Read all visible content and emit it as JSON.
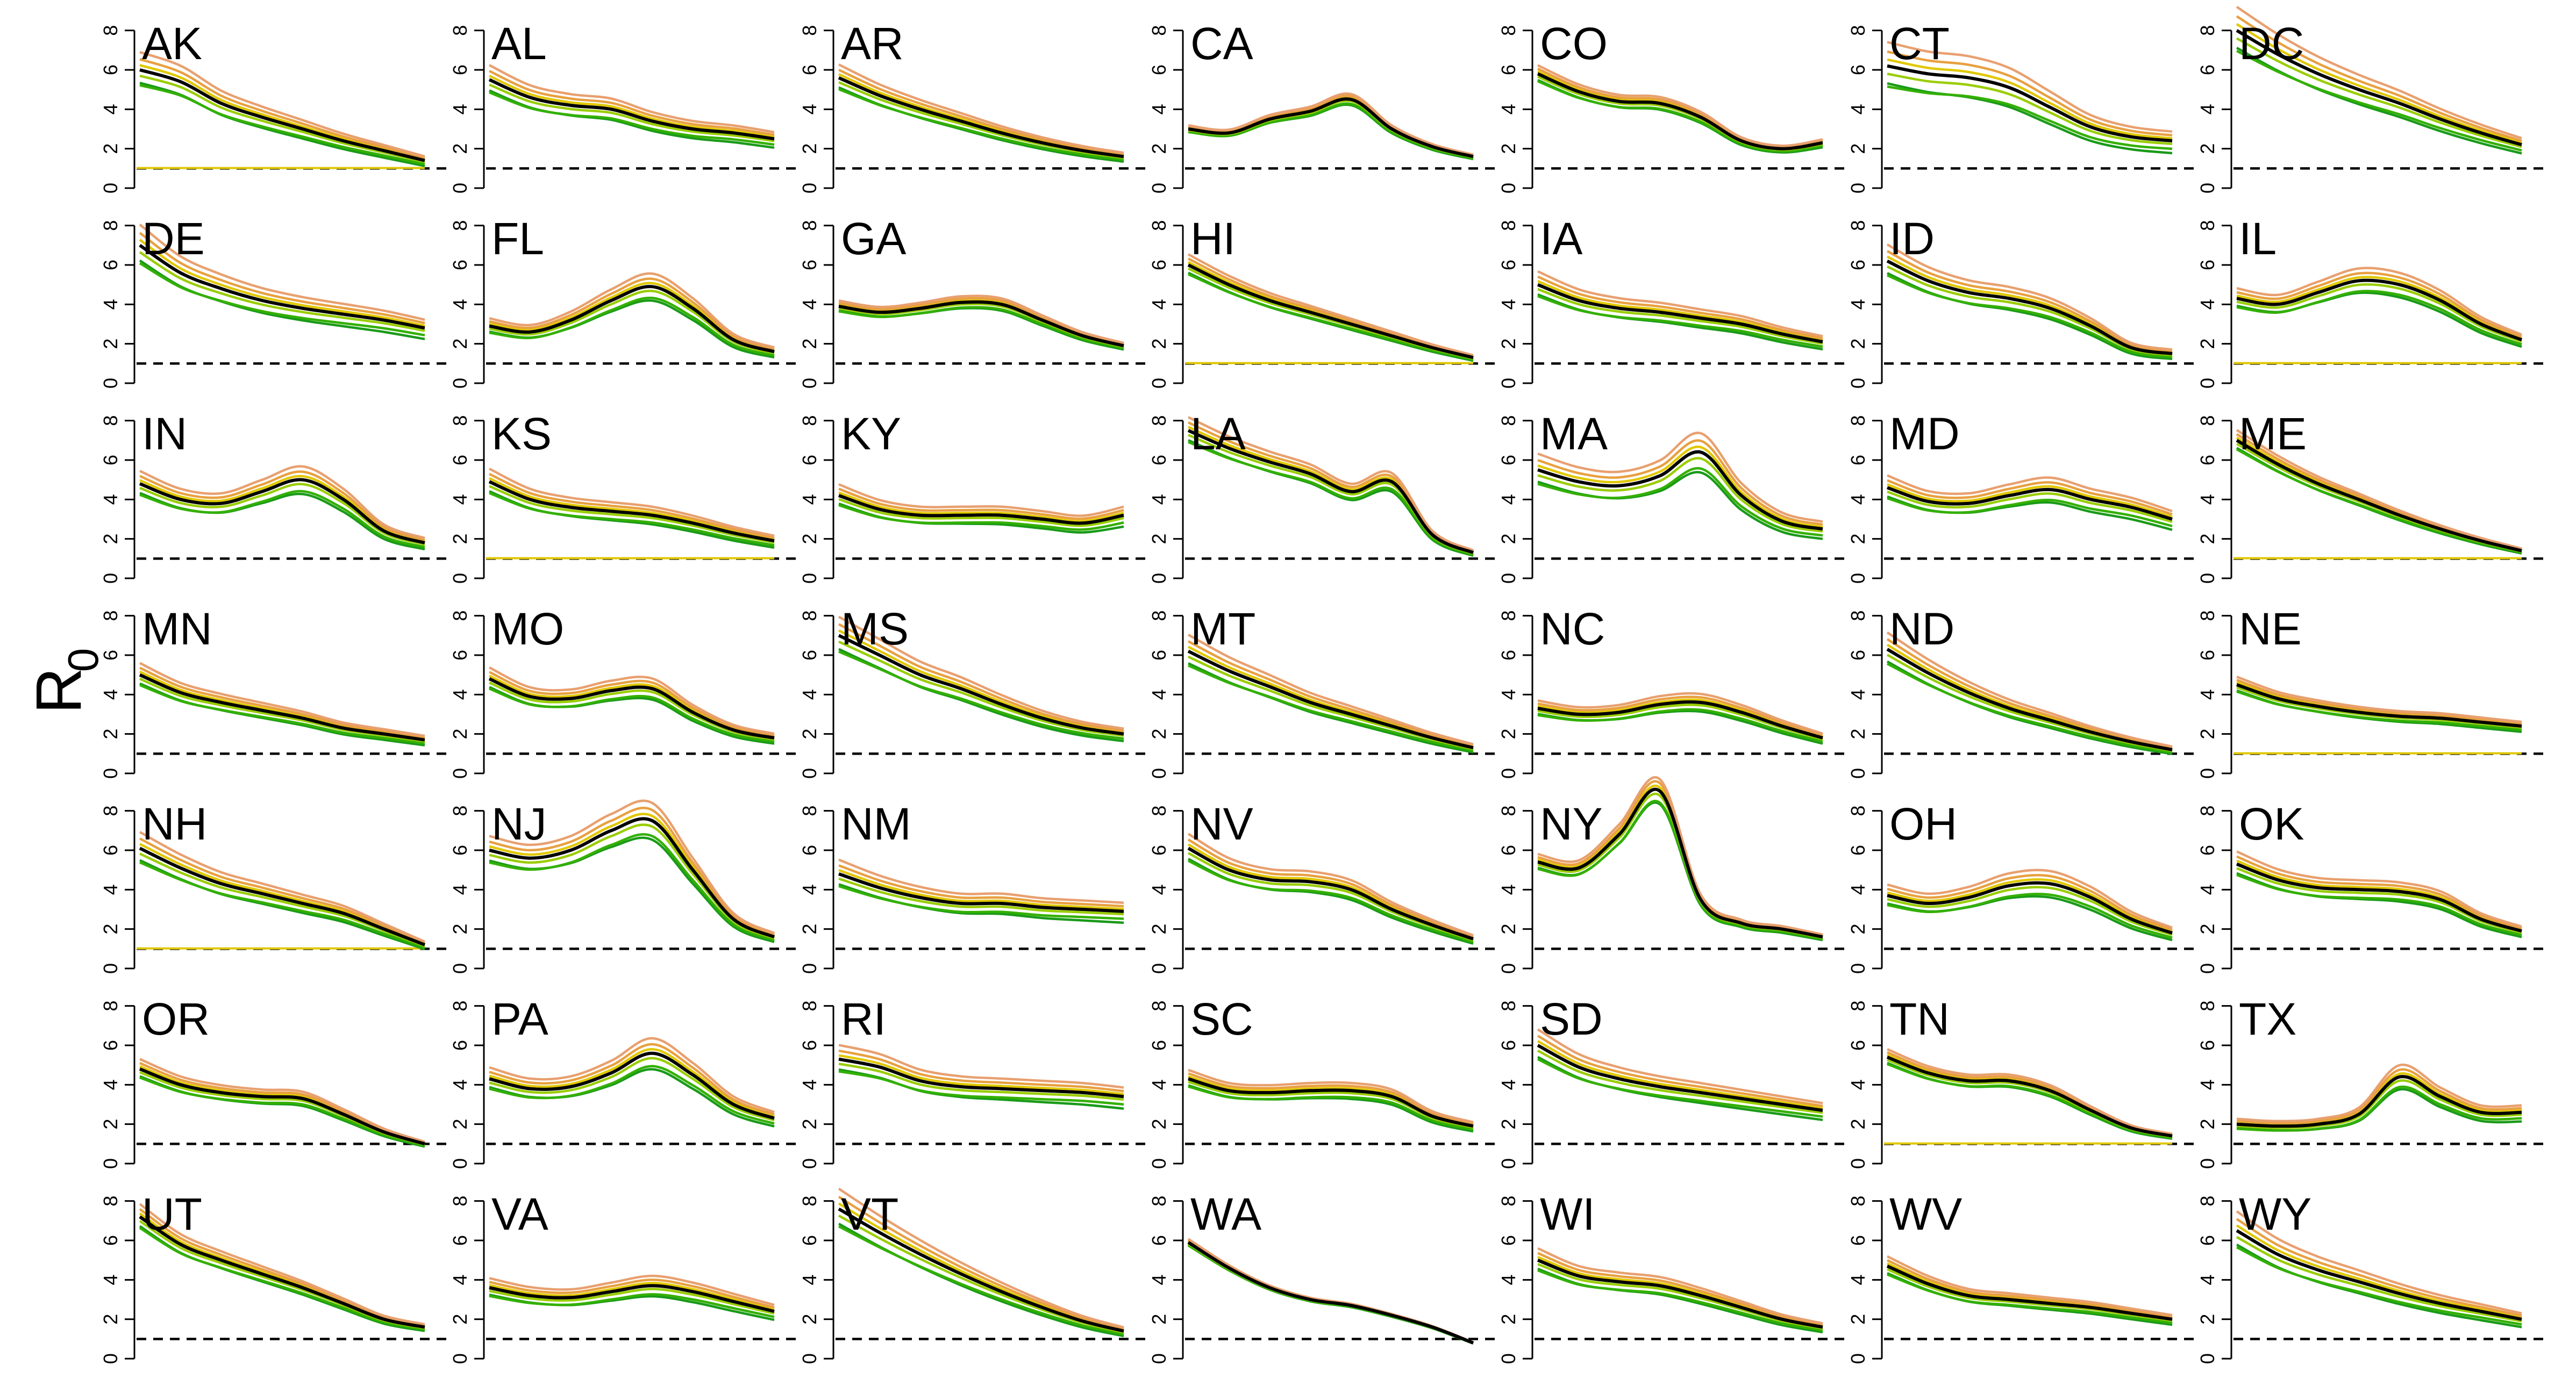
{
  "figure": {
    "ylabel_main": "R",
    "ylabel_sub": "0"
  },
  "colors": {
    "black": "#000000",
    "green_dark": "#1a9a1a",
    "green": "#33b000",
    "yellow_green": "#9acd00",
    "yellow": "#e0c800",
    "orange": "#e8a040",
    "salmon": "#e8a070",
    "reference": "#000000"
  },
  "chart_data": {
    "type": "line",
    "grid": false,
    "reference_line": 1,
    "ylim": [
      0,
      9
    ],
    "yticks": [
      "0",
      "2",
      "4",
      "6",
      "8"
    ],
    "series_colors": [
      "#1a9a1a",
      "#33b000",
      "#9acd00",
      "#e0c800",
      "#e8a040",
      "#e8a070"
    ],
    "panels": [
      {
        "state": "AK",
        "curve": [
          6.0,
          5.4,
          4.3,
          3.6,
          3.0,
          2.4,
          1.9,
          1.4
        ],
        "spread": 1.0,
        "flat_low": true
      },
      {
        "state": "AL",
        "curve": [
          5.5,
          4.6,
          4.2,
          4.0,
          3.4,
          3.0,
          2.8,
          2.5
        ],
        "spread": 0.9
      },
      {
        "state": "AR",
        "curve": [
          5.6,
          4.7,
          4.0,
          3.4,
          2.8,
          2.3,
          1.9,
          1.6
        ],
        "spread": 0.8
      },
      {
        "state": "CA",
        "curve": [
          3.0,
          2.8,
          3.5,
          3.9,
          4.5,
          3.0,
          2.1,
          1.6
        ],
        "spread": 0.4
      },
      {
        "state": "CO",
        "curve": [
          5.8,
          4.9,
          4.4,
          4.3,
          3.6,
          2.4,
          2.0,
          2.3
        ],
        "spread": 0.5
      },
      {
        "state": "CT",
        "curve": [
          6.2,
          5.8,
          5.6,
          5.1,
          4.1,
          3.1,
          2.6,
          2.4
        ],
        "spread": 1.3
      },
      {
        "state": "DC",
        "curve": [
          8.0,
          6.8,
          5.8,
          5.0,
          4.3,
          3.5,
          2.8,
          2.2
        ],
        "spread": 1.0
      },
      {
        "state": "DE",
        "curve": [
          7.0,
          5.6,
          4.8,
          4.2,
          3.8,
          3.5,
          3.2,
          2.8
        ],
        "spread": 1.0
      },
      {
        "state": "FL",
        "curve": [
          2.9,
          2.6,
          3.2,
          4.2,
          4.9,
          3.8,
          2.2,
          1.6
        ],
        "spread": 0.9
      },
      {
        "state": "GA",
        "curve": [
          3.9,
          3.6,
          3.8,
          4.1,
          4.0,
          3.2,
          2.4,
          1.9
        ],
        "spread": 0.5
      },
      {
        "state": "HI",
        "curve": [
          6.0,
          5.0,
          4.2,
          3.6,
          3.0,
          2.4,
          1.8,
          1.3
        ],
        "spread": 0.6,
        "flat_low": true
      },
      {
        "state": "IA",
        "curve": [
          5.0,
          4.2,
          3.8,
          3.6,
          3.3,
          3.0,
          2.5,
          2.1
        ],
        "spread": 0.9
      },
      {
        "state": "ID",
        "curve": [
          6.2,
          5.2,
          4.6,
          4.3,
          3.8,
          2.9,
          1.8,
          1.5
        ],
        "spread": 0.9
      },
      {
        "state": "IL",
        "curve": [
          4.3,
          4.0,
          4.6,
          5.2,
          5.0,
          4.2,
          3.0,
          2.2
        ],
        "spread": 0.8,
        "flat_low": true
      },
      {
        "state": "IN",
        "curve": [
          4.8,
          4.0,
          3.8,
          4.4,
          5.0,
          4.0,
          2.4,
          1.8
        ],
        "spread": 0.9
      },
      {
        "state": "KS",
        "curve": [
          4.9,
          4.0,
          3.6,
          3.4,
          3.2,
          2.8,
          2.3,
          1.9
        ],
        "spread": 0.9,
        "flat_low": true
      },
      {
        "state": "KY",
        "curve": [
          4.2,
          3.5,
          3.2,
          3.2,
          3.2,
          3.0,
          2.8,
          3.2
        ],
        "spread": 0.9
      },
      {
        "state": "LA",
        "curve": [
          7.5,
          6.6,
          5.9,
          5.3,
          4.4,
          4.9,
          2.2,
          1.3
        ],
        "spread": 0.6
      },
      {
        "state": "MA",
        "curve": [
          5.5,
          4.9,
          4.7,
          5.2,
          6.4,
          4.2,
          2.9,
          2.5
        ],
        "spread": 1.0
      },
      {
        "state": "MD",
        "curve": [
          4.6,
          3.9,
          3.8,
          4.2,
          4.5,
          4.0,
          3.6,
          3.0
        ],
        "spread": 0.9
      },
      {
        "state": "ME",
        "curve": [
          7.0,
          5.8,
          4.8,
          4.0,
          3.2,
          2.5,
          1.9,
          1.4
        ],
        "spread": 0.5,
        "flat_low": true
      },
      {
        "state": "MN",
        "curve": [
          5.0,
          4.1,
          3.6,
          3.2,
          2.8,
          2.3,
          2.0,
          1.7
        ],
        "spread": 0.8
      },
      {
        "state": "MO",
        "curve": [
          4.8,
          3.9,
          3.8,
          4.2,
          4.3,
          3.1,
          2.2,
          1.8
        ],
        "spread": 0.8
      },
      {
        "state": "MS",
        "curve": [
          7.0,
          6.0,
          5.0,
          4.3,
          3.5,
          2.8,
          2.3,
          2.0
        ],
        "spread": 0.9
      },
      {
        "state": "MT",
        "curve": [
          6.2,
          5.2,
          4.4,
          3.6,
          3.0,
          2.4,
          1.8,
          1.3
        ],
        "spread": 0.9
      },
      {
        "state": "NC",
        "curve": [
          3.3,
          3.0,
          3.1,
          3.5,
          3.6,
          3.1,
          2.4,
          1.8
        ],
        "spread": 0.8
      },
      {
        "state": "ND",
        "curve": [
          6.3,
          5.1,
          4.1,
          3.3,
          2.7,
          2.1,
          1.6,
          1.2
        ],
        "spread": 0.9
      },
      {
        "state": "NE",
        "curve": [
          4.5,
          3.8,
          3.4,
          3.1,
          2.9,
          2.8,
          2.6,
          2.4
        ],
        "spread": 0.6,
        "flat_low": true
      },
      {
        "state": "NH",
        "curve": [
          6.1,
          5.1,
          4.3,
          3.8,
          3.3,
          2.8,
          2.0,
          1.2
        ],
        "spread": 0.9,
        "flat_low": true
      },
      {
        "state": "NJ",
        "curve": [
          6.0,
          5.6,
          6.0,
          7.0,
          7.5,
          5.0,
          2.5,
          1.6
        ],
        "spread": 0.8
      },
      {
        "state": "NM",
        "curve": [
          4.8,
          4.1,
          3.6,
          3.3,
          3.3,
          3.1,
          3.0,
          2.9
        ],
        "spread": 1.0
      },
      {
        "state": "NV",
        "curve": [
          6.1,
          5.0,
          4.5,
          4.4,
          4.0,
          3.0,
          2.2,
          1.5
        ],
        "spread": 0.8
      },
      {
        "state": "NY",
        "curve": [
          5.4,
          5.1,
          6.8,
          9.0,
          3.5,
          2.3,
          2.0,
          1.6
        ],
        "spread": 0.5
      },
      {
        "state": "OH",
        "curve": [
          3.7,
          3.3,
          3.6,
          4.2,
          4.3,
          3.6,
          2.5,
          1.8
        ],
        "spread": 1.0
      },
      {
        "state": "OK",
        "curve": [
          5.3,
          4.5,
          4.1,
          4.0,
          3.9,
          3.5,
          2.5,
          1.9
        ],
        "spread": 0.8
      },
      {
        "state": "OR",
        "curve": [
          4.8,
          4.0,
          3.6,
          3.4,
          3.3,
          2.5,
          1.6,
          1.0
        ],
        "spread": 0.7
      },
      {
        "state": "PA",
        "curve": [
          4.3,
          3.8,
          3.9,
          4.6,
          5.6,
          4.5,
          3.0,
          2.3
        ],
        "spread": 0.9
      },
      {
        "state": "RI",
        "curve": [
          5.3,
          4.9,
          4.2,
          3.9,
          3.8,
          3.7,
          3.6,
          3.4
        ],
        "spread": 0.9
      },
      {
        "state": "SC",
        "curve": [
          4.3,
          3.7,
          3.6,
          3.7,
          3.7,
          3.4,
          2.4,
          1.9
        ],
        "spread": 0.7
      },
      {
        "state": "SD",
        "curve": [
          6.0,
          4.9,
          4.3,
          3.9,
          3.6,
          3.3,
          3.0,
          2.7
        ],
        "spread": 0.9
      },
      {
        "state": "TN",
        "curve": [
          5.4,
          4.6,
          4.2,
          4.2,
          3.7,
          2.7,
          1.8,
          1.4
        ],
        "spread": 0.5,
        "flat_low": true
      },
      {
        "state": "TX",
        "curve": [
          2.0,
          1.9,
          2.0,
          2.5,
          4.4,
          3.4,
          2.6,
          2.6
        ],
        "spread": 0.9
      },
      {
        "state": "UT",
        "curve": [
          7.2,
          5.8,
          5.0,
          4.3,
          3.6,
          2.8,
          2.0,
          1.6
        ],
        "spread": 0.6
      },
      {
        "state": "VA",
        "curve": [
          3.6,
          3.2,
          3.1,
          3.4,
          3.7,
          3.4,
          2.9,
          2.4
        ],
        "spread": 0.9
      },
      {
        "state": "VT",
        "curve": [
          7.6,
          6.4,
          5.3,
          4.3,
          3.4,
          2.6,
          1.9,
          1.4
        ],
        "spread": 0.9
      },
      {
        "state": "WA",
        "curve": [
          5.9,
          4.6,
          3.6,
          3.0,
          2.7,
          2.2,
          1.6,
          0.8
        ],
        "spread": 0.2
      },
      {
        "state": "WI",
        "curve": [
          5.0,
          4.2,
          3.9,
          3.7,
          3.2,
          2.6,
          2.0,
          1.6
        ],
        "spread": 0.8
      },
      {
        "state": "WV",
        "curve": [
          4.7,
          3.8,
          3.2,
          3.0,
          2.8,
          2.6,
          2.3,
          2.0
        ],
        "spread": 0.7
      },
      {
        "state": "WY",
        "curve": [
          6.5,
          5.3,
          4.5,
          3.9,
          3.3,
          2.8,
          2.4,
          2.0
        ],
        "spread": 1.0
      }
    ]
  }
}
